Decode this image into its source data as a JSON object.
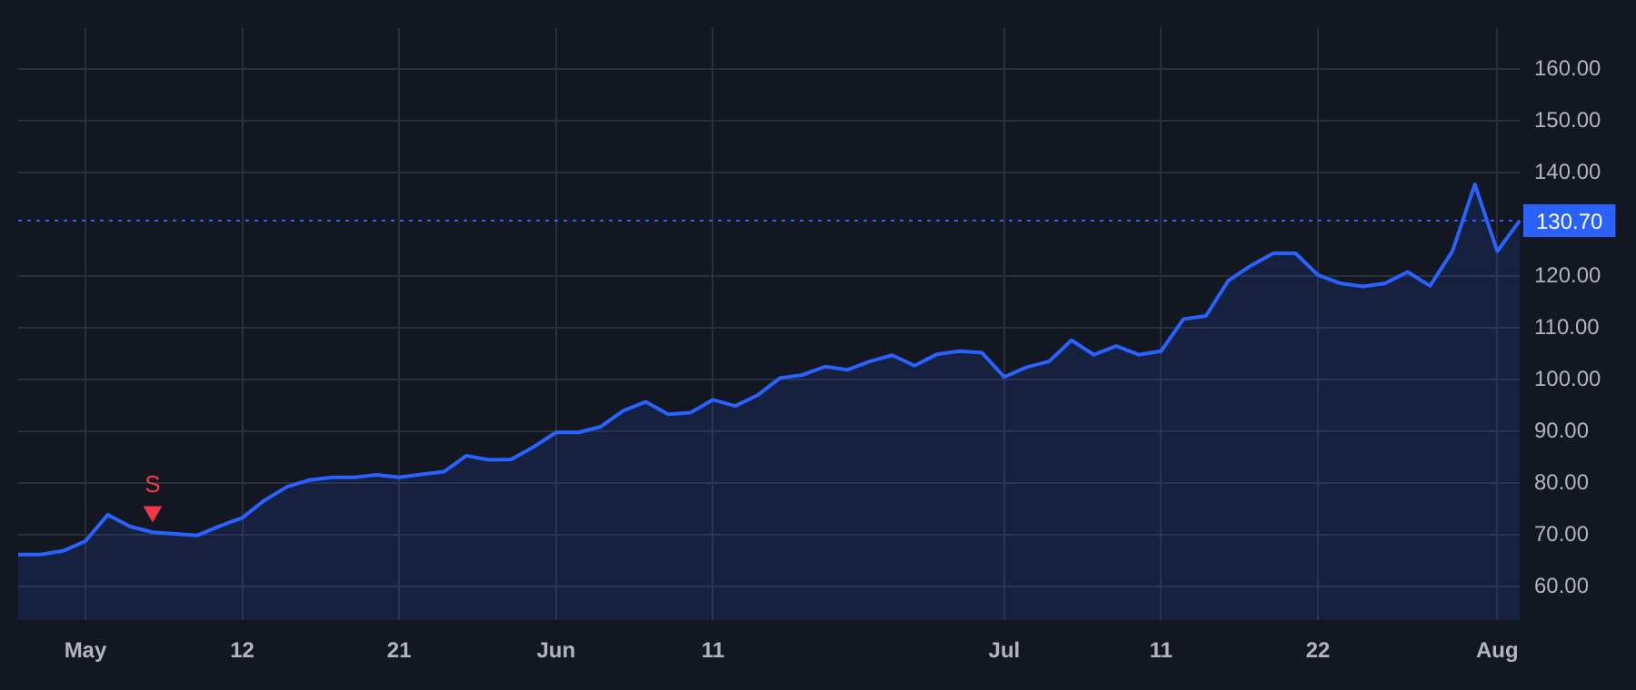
{
  "chart_data": {
    "type": "area",
    "categories": [
      null,
      null,
      null,
      "May",
      null,
      null,
      null,
      null,
      null,
      null,
      "12",
      null,
      null,
      null,
      null,
      null,
      null,
      "21",
      null,
      null,
      null,
      null,
      null,
      null,
      "Jun",
      null,
      null,
      null,
      null,
      null,
      null,
      "11",
      null,
      null,
      null,
      null,
      null,
      null,
      null,
      null,
      null,
      null,
      null,
      null,
      "Jul",
      null,
      null,
      null,
      null,
      null,
      null,
      "11",
      null,
      null,
      null,
      null,
      null,
      null,
      "22",
      null,
      null,
      null,
      null,
      null,
      null,
      null,
      "Aug",
      null
    ],
    "series": [
      {
        "color": "#2962ff",
        "values": [
          66.2,
          66.2,
          66.9,
          68.8,
          73.9,
          71.6,
          70.5,
          70.2,
          69.9,
          71.7,
          73.3,
          76.7,
          79.3,
          80.6,
          81.1,
          81.1,
          81.6,
          81.1,
          81.7,
          82.2,
          85.3,
          84.5,
          84.6,
          87.0,
          89.8,
          89.8,
          90.9,
          94.0,
          95.7,
          93.3,
          93.6,
          96.1,
          94.9,
          97.0,
          100.3,
          100.9,
          102.5,
          101.9,
          103.5,
          104.7,
          102.7,
          104.9,
          105.5,
          105.2,
          100.5,
          102.4,
          103.5,
          107.6,
          104.8,
          106.5,
          104.8,
          105.5,
          111.7,
          112.3,
          119.1,
          122.0,
          124.4,
          124.4,
          120.2,
          118.6,
          118.0,
          118.6,
          120.8,
          118.1,
          124.8,
          137.7,
          124.8,
          130.7
        ]
      },
      {
        "type": "scatter",
        "color": "#f23645",
        "marker": "triangle",
        "values": [
          null,
          null,
          null,
          null,
          null,
          null,
          74.5,
          null,
          null,
          null,
          null,
          null,
          null,
          null,
          null,
          null,
          null,
          null,
          null,
          null,
          null,
          null,
          null,
          null,
          null,
          null,
          null,
          null,
          null,
          null,
          null,
          null,
          null,
          null,
          null,
          null,
          null,
          null,
          null,
          null,
          null,
          null,
          null,
          null,
          null,
          null,
          null,
          null,
          null,
          null,
          null,
          null,
          null,
          null,
          null,
          null,
          null,
          null,
          null,
          null,
          null,
          null,
          null,
          null,
          null,
          null,
          null,
          null
        ],
        "value_labels": [
          null,
          null,
          null,
          null,
          null,
          null,
          "S",
          null,
          null,
          null,
          null,
          null,
          null,
          null,
          null,
          null,
          null,
          null,
          null,
          null,
          null,
          null,
          null,
          null,
          null,
          null,
          null,
          null,
          null,
          null,
          null,
          null,
          null,
          null,
          null,
          null,
          null,
          null,
          null,
          null,
          null,
          null,
          null,
          null,
          null,
          null,
          null,
          null,
          null,
          null,
          null,
          null,
          null,
          null,
          null,
          null,
          null,
          null,
          null,
          null,
          null,
          null,
          null,
          null,
          null,
          null,
          null,
          null
        ]
      }
    ],
    "ylim": [
      53.5,
      168
    ],
    "yticks": [
      {
        "value": 60,
        "label": "60.00"
      },
      {
        "value": 70,
        "label": "70.00"
      },
      {
        "value": 80,
        "label": "80.00"
      },
      {
        "value": 90,
        "label": "90.00"
      },
      {
        "value": 100,
        "label": "100.00"
      },
      {
        "value": 110,
        "label": "110.00"
      },
      {
        "value": 120,
        "label": "120.00"
      },
      {
        "value": 140,
        "label": "140.00"
      },
      {
        "value": 150,
        "label": "150.00"
      },
      {
        "value": 160,
        "label": "160.00"
      }
    ],
    "ref_lines": [
      {
        "axis": "y",
        "value": 130.7,
        "label": "130.70",
        "color": "#2962ff",
        "line_style": "dotted"
      }
    ],
    "grid": true,
    "legend": false
  }
}
